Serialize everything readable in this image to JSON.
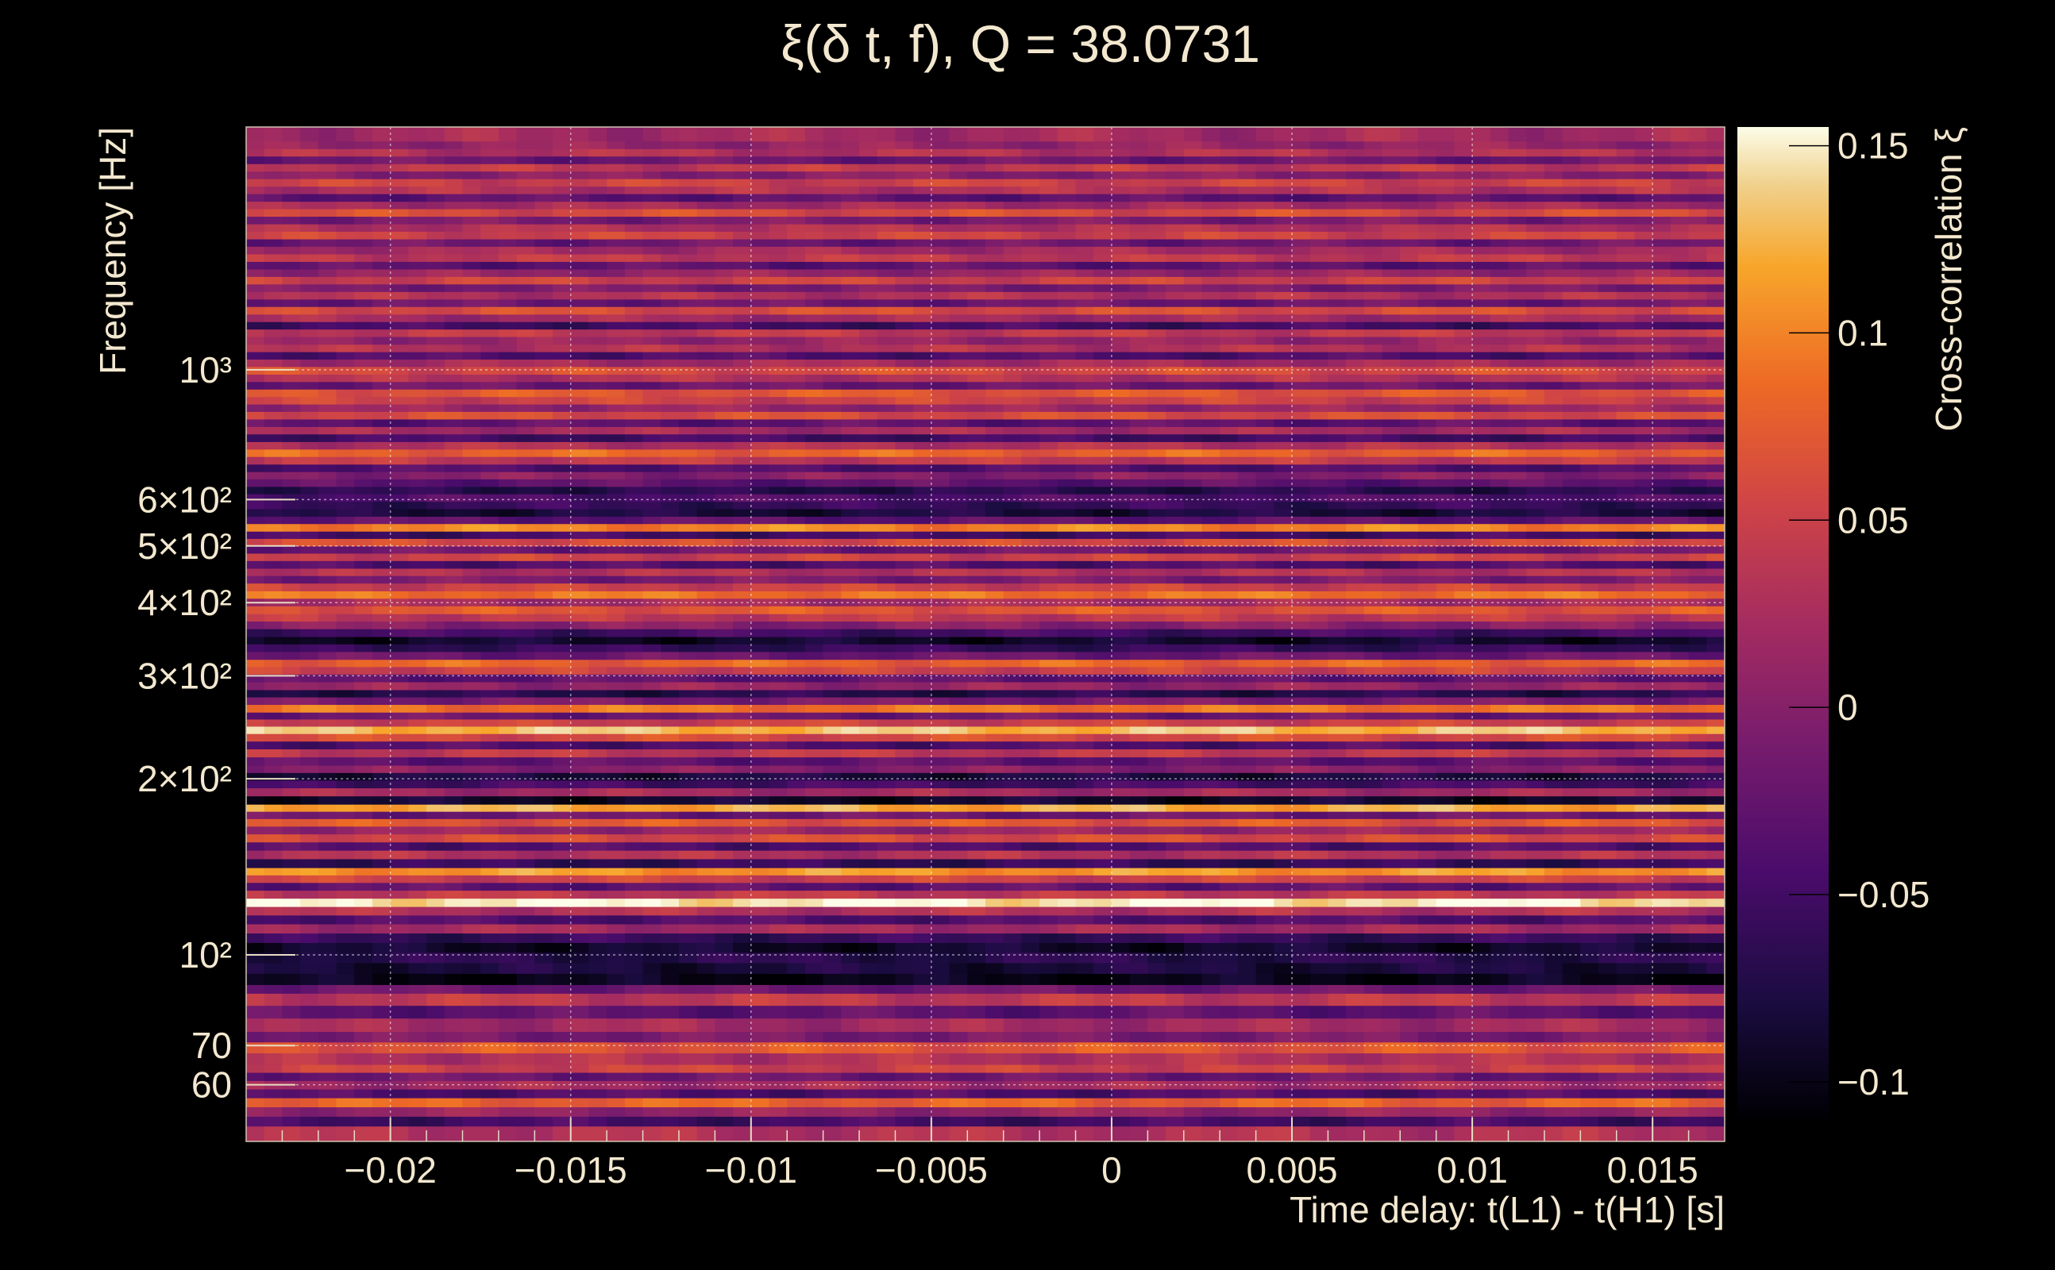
{
  "chart_data": {
    "type": "heatmap",
    "title": "ξ(δ t, f), Q = 38.0731",
    "xlabel": "Time delay: t(L1) - t(H1) [s]",
    "ylabel": "Frequency [Hz]",
    "colorbar_label": "Cross-correlation ξ",
    "xlim": [
      -0.024,
      0.017
    ],
    "ylim": [
      48,
      2600
    ],
    "y_scale": "log",
    "zlim": [
      -0.11,
      0.155
    ],
    "grid": true,
    "x_ticks": [
      {
        "value": -0.02,
        "label": "−0.02"
      },
      {
        "value": -0.015,
        "label": "−0.015"
      },
      {
        "value": -0.01,
        "label": "−0.01"
      },
      {
        "value": -0.005,
        "label": "−0.005"
      },
      {
        "value": 0,
        "label": "0"
      },
      {
        "value": 0.005,
        "label": "0.005"
      },
      {
        "value": 0.01,
        "label": "0.01"
      },
      {
        "value": 0.015,
        "label": "0.015"
      }
    ],
    "y_ticks": [
      {
        "value": 60,
        "label": "60"
      },
      {
        "value": 70,
        "label": "70"
      },
      {
        "value": 100,
        "label": "10²"
      },
      {
        "value": 200,
        "label": "2×10²"
      },
      {
        "value": 300,
        "label": "3×10²"
      },
      {
        "value": 400,
        "label": "4×10²"
      },
      {
        "value": 500,
        "label": "5×10²"
      },
      {
        "value": 600,
        "label": "6×10²"
      },
      {
        "value": 1000,
        "label": "10³"
      }
    ],
    "colorbar_ticks": [
      {
        "value": 0.15,
        "label": "0.15"
      },
      {
        "value": 0.1,
        "label": "0.1"
      },
      {
        "value": 0.05,
        "label": "0.05"
      },
      {
        "value": 0,
        "label": "0"
      },
      {
        "value": -0.05,
        "label": "−0.05"
      },
      {
        "value": -0.1,
        "label": "−0.1"
      }
    ],
    "frequency_bands": [
      {
        "f": [
          48,
          51
        ],
        "v": 0.03
      },
      {
        "f": [
          51,
          53
        ],
        "v": -0.05
      },
      {
        "f": [
          53,
          55
        ],
        "v": 0.01
      },
      {
        "f": [
          55,
          57
        ],
        "v": 0.08
      },
      {
        "f": [
          57,
          59
        ],
        "v": -0.04
      },
      {
        "f": [
          59,
          61
        ],
        "v": 0.02
      },
      {
        "f": [
          61,
          63
        ],
        "v": -0.02
      },
      {
        "f": [
          63,
          65
        ],
        "v": 0.05
      },
      {
        "f": [
          65,
          68
        ],
        "v": 0.03
      },
      {
        "f": [
          68,
          71
        ],
        "v": 0.07
      },
      {
        "f": [
          71,
          74
        ],
        "v": -0.01
      },
      {
        "f": [
          74,
          78
        ],
        "v": 0.02
      },
      {
        "f": [
          78,
          82
        ],
        "v": -0.03
      },
      {
        "f": [
          82,
          86
        ],
        "v": 0.04
      },
      {
        "f": [
          86,
          89
        ],
        "v": -0.02
      },
      {
        "f": [
          89,
          93
        ],
        "v": -0.1
      },
      {
        "f": [
          93,
          97
        ],
        "v": -0.08
      },
      {
        "f": [
          97,
          101
        ],
        "v": -0.07
      },
      {
        "f": [
          101,
          105
        ],
        "v": -0.09
      },
      {
        "f": [
          105,
          109
        ],
        "v": -0.06
      },
      {
        "f": [
          109,
          113
        ],
        "v": 0.02
      },
      {
        "f": [
          113,
          117
        ],
        "v": -0.04
      },
      {
        "f": [
          117,
          121
        ],
        "v": 0.03
      },
      {
        "f": [
          121,
          125
        ],
        "v": 0.15
      },
      {
        "f": [
          125,
          129
        ],
        "v": 0.04
      },
      {
        "f": [
          129,
          133
        ],
        "v": -0.03
      },
      {
        "f": [
          133,
          137
        ],
        "v": 0.05
      },
      {
        "f": [
          137,
          141
        ],
        "v": 0.11
      },
      {
        "f": [
          141,
          146
        ],
        "v": -0.06
      },
      {
        "f": [
          146,
          151
        ],
        "v": 0.03
      },
      {
        "f": [
          151,
          156
        ],
        "v": -0.04
      },
      {
        "f": [
          156,
          161
        ],
        "v": 0.06
      },
      {
        "f": [
          161,
          166
        ],
        "v": 0.01
      },
      {
        "f": [
          166,
          171
        ],
        "v": 0.07
      },
      {
        "f": [
          171,
          176
        ],
        "v": -0.02
      },
      {
        "f": [
          176,
          181
        ],
        "v": 0.12
      },
      {
        "f": [
          181,
          187
        ],
        "v": -0.09
      },
      {
        "f": [
          187,
          193
        ],
        "v": 0.02
      },
      {
        "f": [
          193,
          199
        ],
        "v": -0.05
      },
      {
        "f": [
          199,
          205
        ],
        "v": -0.08
      },
      {
        "f": [
          205,
          211
        ],
        "v": 0.0
      },
      {
        "f": [
          211,
          218
        ],
        "v": -0.03
      },
      {
        "f": [
          218,
          225
        ],
        "v": 0.04
      },
      {
        "f": [
          225,
          232
        ],
        "v": -0.04
      },
      {
        "f": [
          232,
          239
        ],
        "v": 0.06
      },
      {
        "f": [
          239,
          246
        ],
        "v": 0.13
      },
      {
        "f": [
          246,
          253
        ],
        "v": 0.05
      },
      {
        "f": [
          253,
          260
        ],
        "v": -0.02
      },
      {
        "f": [
          260,
          268
        ],
        "v": 0.09
      },
      {
        "f": [
          268,
          276
        ],
        "v": -0.01
      },
      {
        "f": [
          276,
          284
        ],
        "v": -0.07
      },
      {
        "f": [
          284,
          293
        ],
        "v": 0.01
      },
      {
        "f": [
          293,
          302
        ],
        "v": -0.03
      },
      {
        "f": [
          302,
          311
        ],
        "v": 0.05
      },
      {
        "f": [
          311,
          320
        ],
        "v": 0.08
      },
      {
        "f": [
          320,
          330
        ],
        "v": -0.02
      },
      {
        "f": [
          330,
          340
        ],
        "v": -0.06
      },
      {
        "f": [
          340,
          350
        ],
        "v": -0.09
      },
      {
        "f": [
          350,
          361
        ],
        "v": -0.05
      },
      {
        "f": [
          361,
          372
        ],
        "v": 0.0
      },
      {
        "f": [
          372,
          383
        ],
        "v": 0.04
      },
      {
        "f": [
          383,
          395
        ],
        "v": 0.07
      },
      {
        "f": [
          395,
          407
        ],
        "v": 0.02
      },
      {
        "f": [
          407,
          419
        ],
        "v": 0.09
      },
      {
        "f": [
          419,
          432
        ],
        "v": 0.05
      },
      {
        "f": [
          432,
          445
        ],
        "v": -0.01
      },
      {
        "f": [
          445,
          458
        ],
        "v": 0.03
      },
      {
        "f": [
          458,
          472
        ],
        "v": -0.04
      },
      {
        "f": [
          472,
          486
        ],
        "v": 0.05
      },
      {
        "f": [
          486,
          500
        ],
        "v": -0.02
      },
      {
        "f": [
          500,
          515
        ],
        "v": 0.06
      },
      {
        "f": [
          515,
          530
        ],
        "v": -0.05
      },
      {
        "f": [
          530,
          546
        ],
        "v": 0.1
      },
      {
        "f": [
          546,
          562
        ],
        "v": -0.03
      },
      {
        "f": [
          562,
          579
        ],
        "v": -0.08
      },
      {
        "f": [
          579,
          596
        ],
        "v": -0.06
      },
      {
        "f": [
          596,
          614
        ],
        "v": -0.04
      },
      {
        "f": [
          614,
          632
        ],
        "v": -0.07
      },
      {
        "f": [
          632,
          651
        ],
        "v": -0.03
      },
      {
        "f": [
          651,
          670
        ],
        "v": 0.0
      },
      {
        "f": [
          670,
          690
        ],
        "v": -0.04
      },
      {
        "f": [
          690,
          711
        ],
        "v": 0.04
      },
      {
        "f": [
          711,
          732
        ],
        "v": 0.08
      },
      {
        "f": [
          732,
          754
        ],
        "v": 0.03
      },
      {
        "f": [
          754,
          777
        ],
        "v": -0.05
      },
      {
        "f": [
          777,
          800
        ],
        "v": 0.02
      },
      {
        "f": [
          800,
          824
        ],
        "v": -0.03
      },
      {
        "f": [
          824,
          849
        ],
        "v": 0.06
      },
      {
        "f": [
          849,
          874
        ],
        "v": 0.01
      },
      {
        "f": [
          874,
          900
        ],
        "v": 0.05
      },
      {
        "f": [
          900,
          927
        ],
        "v": 0.07
      },
      {
        "f": [
          927,
          955
        ],
        "v": -0.02
      },
      {
        "f": [
          955,
          983
        ],
        "v": 0.03
      },
      {
        "f": [
          983,
          1013
        ],
        "v": 0.06
      },
      {
        "f": [
          1013,
          1043
        ],
        "v": 0.02
      },
      {
        "f": [
          1043,
          1074
        ],
        "v": -0.04
      },
      {
        "f": [
          1074,
          1106
        ],
        "v": 0.03
      },
      {
        "f": [
          1106,
          1140
        ],
        "v": 0.01
      },
      {
        "f": [
          1140,
          1174
        ],
        "v": 0.04
      },
      {
        "f": [
          1174,
          1209
        ],
        "v": -0.05
      },
      {
        "f": [
          1209,
          1245
        ],
        "v": 0.02
      },
      {
        "f": [
          1245,
          1283
        ],
        "v": 0.06
      },
      {
        "f": [
          1283,
          1321
        ],
        "v": -0.02
      },
      {
        "f": [
          1321,
          1361
        ],
        "v": 0.03
      },
      {
        "f": [
          1361,
          1402
        ],
        "v": -0.01
      },
      {
        "f": [
          1402,
          1444
        ],
        "v": 0.05
      },
      {
        "f": [
          1444,
          1487
        ],
        "v": 0.01
      },
      {
        "f": [
          1487,
          1532
        ],
        "v": -0.03
      },
      {
        "f": [
          1532,
          1578
        ],
        "v": 0.04
      },
      {
        "f": [
          1578,
          1626
        ],
        "v": 0.02
      },
      {
        "f": [
          1626,
          1674
        ],
        "v": -0.02
      },
      {
        "f": [
          1674,
          1725
        ],
        "v": 0.05
      },
      {
        "f": [
          1725,
          1776
        ],
        "v": 0.03
      },
      {
        "f": [
          1776,
          1830
        ],
        "v": -0.01
      },
      {
        "f": [
          1830,
          1885
        ],
        "v": 0.06
      },
      {
        "f": [
          1885,
          1941
        ],
        "v": 0.02
      },
      {
        "f": [
          1941,
          2000
        ],
        "v": -0.03
      },
      {
        "f": [
          2000,
          2060
        ],
        "v": 0.03
      },
      {
        "f": [
          2060,
          2122
        ],
        "v": 0.05
      },
      {
        "f": [
          2122,
          2186
        ],
        "v": 0.0
      },
      {
        "f": [
          2186,
          2251
        ],
        "v": 0.04
      },
      {
        "f": [
          2251,
          2319
        ],
        "v": -0.02
      },
      {
        "f": [
          2319,
          2388
        ],
        "v": 0.03
      },
      {
        "f": [
          2388,
          2460
        ],
        "v": 0.01
      },
      {
        "f": [
          2460,
          2600
        ],
        "v": 0.02
      }
    ]
  }
}
